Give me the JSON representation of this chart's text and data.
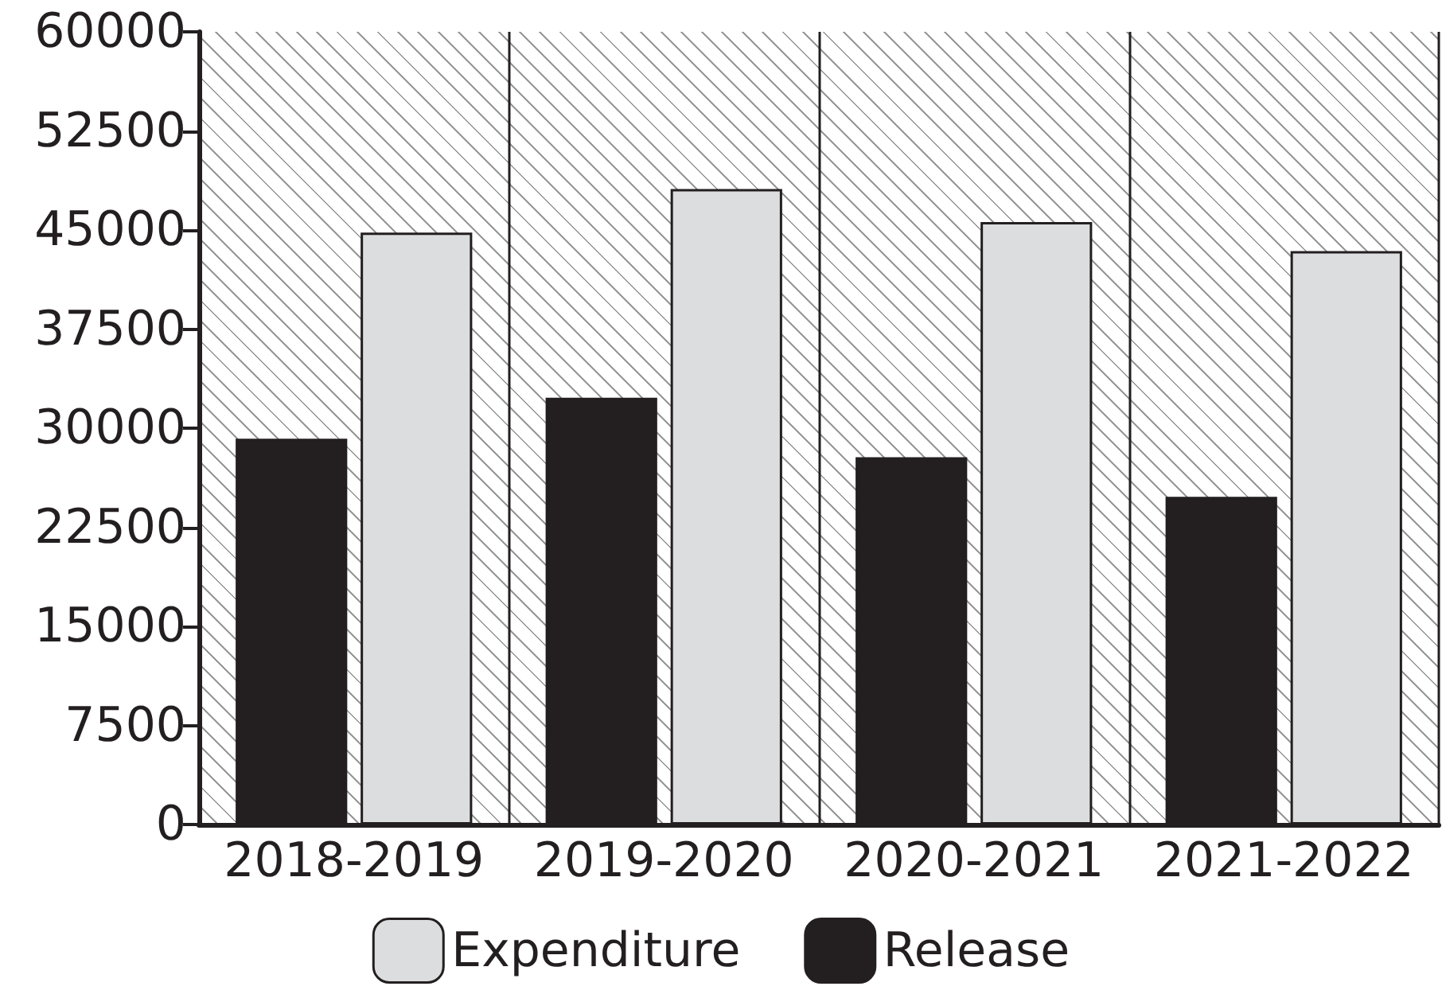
{
  "chart_data": {
    "type": "bar",
    "categories": [
      "2018-2019",
      "2019-2020",
      "2020-2021",
      "2021-2022"
    ],
    "series": [
      {
        "name": "Release",
        "color": "#231f20",
        "values": [
          29200,
          32300,
          27800,
          24800
        ]
      },
      {
        "name": "Expenditure",
        "color": "#dcdddf",
        "values": [
          44800,
          48100,
          45600,
          43400
        ]
      }
    ],
    "ylim": [
      0,
      60000
    ],
    "yticks": [
      0,
      7500,
      15000,
      22500,
      30000,
      37500,
      45000,
      52500,
      60000
    ],
    "grid": "x",
    "legend": "bottom"
  }
}
